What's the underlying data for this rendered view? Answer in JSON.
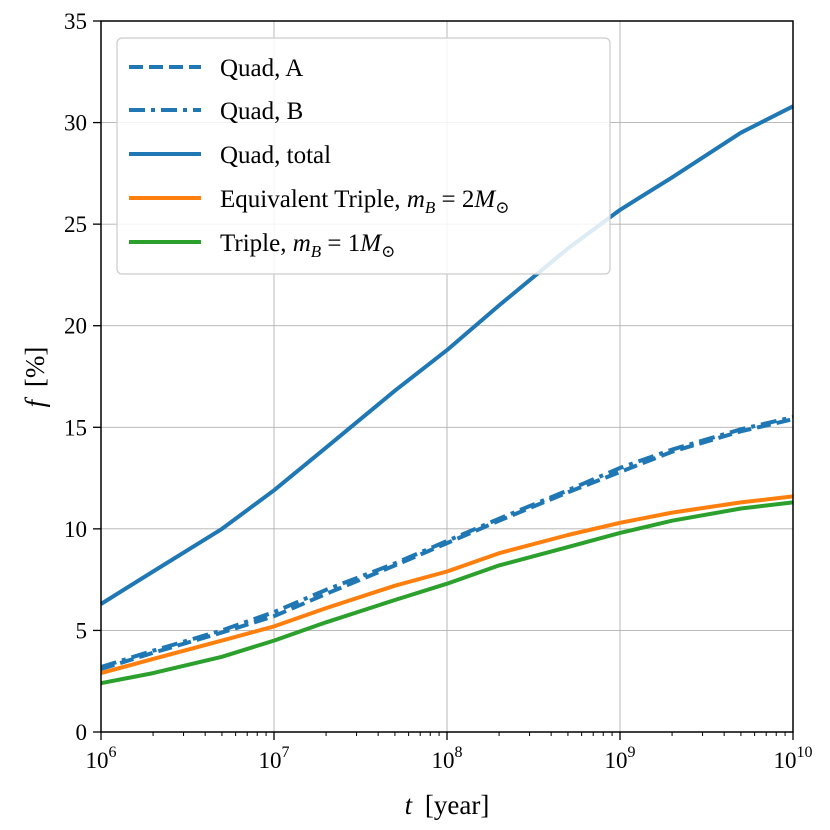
{
  "chart_data": {
    "type": "line",
    "title": "",
    "xlabel": {
      "var": "t",
      "unit": "[year]"
    },
    "ylabel": {
      "var": "f",
      "unit": "[%]"
    },
    "xscale": "log",
    "xlim": [
      1000000,
      10000000000
    ],
    "ylim": [
      0,
      35
    ],
    "grid": true,
    "legend_location": "upper-left",
    "x_ticks": [
      {
        "base": "10",
        "exp": "6",
        "value": 1000000
      },
      {
        "base": "10",
        "exp": "7",
        "value": 10000000
      },
      {
        "base": "10",
        "exp": "8",
        "value": 100000000
      },
      {
        "base": "10",
        "exp": "9",
        "value": 1000000000
      },
      {
        "base": "10",
        "exp": "10",
        "value": 10000000000
      }
    ],
    "y_ticks": [
      "0",
      "5",
      "10",
      "15",
      "20",
      "25",
      "30",
      "35"
    ],
    "series": [
      {
        "name": "Quad, A",
        "legend": {
          "text": "Quad, A"
        },
        "color": "#1f77b4",
        "style": "dashed",
        "x": [
          1000000,
          2000000,
          5000000,
          10000000,
          20000000,
          50000000,
          100000000,
          200000000,
          500000000,
          1000000000,
          2000000000,
          5000000000,
          10000000000
        ],
        "y": [
          3.1,
          3.9,
          4.9,
          5.7,
          6.8,
          8.2,
          9.3,
          10.4,
          11.8,
          12.8,
          13.8,
          14.8,
          15.4
        ]
      },
      {
        "name": "Quad, B",
        "legend": {
          "text": "Quad, B"
        },
        "color": "#1f77b4",
        "style": "dashdot",
        "x": [
          1000000,
          2000000,
          5000000,
          10000000,
          20000000,
          50000000,
          100000000,
          200000000,
          500000000,
          1000000000,
          2000000000,
          5000000000,
          10000000000
        ],
        "y": [
          3.2,
          4.0,
          5.0,
          5.9,
          7.0,
          8.3,
          9.4,
          10.5,
          11.9,
          13.0,
          13.9,
          14.9,
          15.5
        ]
      },
      {
        "name": "Quad, total",
        "legend": {
          "text": "Quad, total"
        },
        "color": "#1f77b4",
        "style": "solid",
        "x": [
          1000000,
          2000000,
          5000000,
          10000000,
          20000000,
          50000000,
          100000000,
          200000000,
          500000000,
          1000000000,
          2000000000,
          5000000000,
          10000000000
        ],
        "y": [
          6.3,
          7.9,
          10.0,
          11.9,
          14.0,
          16.8,
          18.8,
          21.0,
          23.8,
          25.7,
          27.3,
          29.5,
          30.8
        ]
      },
      {
        "name": "Equivalent Triple, m_B = 2M_sun",
        "legend": {
          "text": "Equivalent Triple, ",
          "math": "m",
          "sub": "B",
          "rest": " = 2",
          "mass": "M",
          "sun": "⊙"
        },
        "color": "#ff7f0e",
        "style": "solid",
        "x": [
          1000000,
          2000000,
          5000000,
          10000000,
          20000000,
          50000000,
          100000000,
          200000000,
          500000000,
          1000000000,
          2000000000,
          5000000000,
          10000000000
        ],
        "y": [
          2.9,
          3.6,
          4.5,
          5.2,
          6.1,
          7.2,
          7.9,
          8.8,
          9.7,
          10.3,
          10.8,
          11.3,
          11.6
        ]
      },
      {
        "name": "Triple, m_B = 1M_sun",
        "legend": {
          "text": "Triple, ",
          "math": "m",
          "sub": "B",
          "rest": " = 1",
          "mass": "M",
          "sun": "⊙"
        },
        "color": "#2ca02c",
        "style": "solid",
        "x": [
          1000000,
          2000000,
          5000000,
          10000000,
          20000000,
          50000000,
          100000000,
          200000000,
          500000000,
          1000000000,
          2000000000,
          5000000000,
          10000000000
        ],
        "y": [
          2.4,
          2.9,
          3.7,
          4.5,
          5.4,
          6.5,
          7.3,
          8.2,
          9.1,
          9.8,
          10.4,
          11.0,
          11.3
        ]
      }
    ]
  }
}
